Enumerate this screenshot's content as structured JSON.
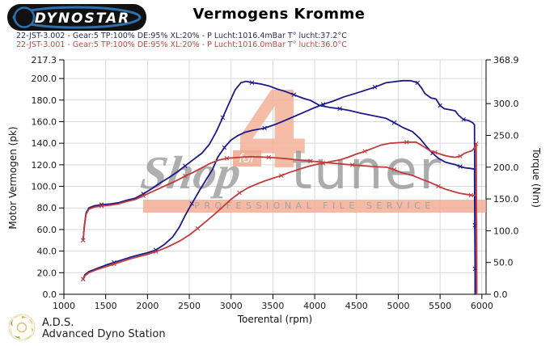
{
  "header": {
    "logo_text": "DYNOSTAR",
    "title": "Vermogens Kromme"
  },
  "legend": [
    {
      "label": "22-JST-3.002 - Gear:5 TP:100% DE:95% XL:20%   - P Lucht:1016.4mBar T° lucht:37.2°C",
      "color": "#2b2b55"
    },
    {
      "label": "22-JST-3.001 - Gear:5 TP:100% DE:95% XL:20%   - P Lucht:1016.0mBar T° lucht:36.0°C",
      "color": "#cc4444"
    }
  ],
  "watermark": {
    "word_shop": "Shop",
    "word_for": "for",
    "word_4": "4",
    "word_tuner": "tuner",
    "band_text": "PROFESSIONAL FILE SERVICE",
    "accent_color": "#f3ac92",
    "gray_color": "#9c9c9c"
  },
  "footer": {
    "abbr": "A.D.S.",
    "name": "Advanced Dyno Station"
  },
  "chart_data": {
    "type": "line",
    "title": "Vermogens Kromme",
    "xlabel": "Toerental (rpm)",
    "ylabel_left": "Motor Vermogen (pk)",
    "ylabel_right": "Torque (Nm)",
    "xlim": [
      1000,
      6050
    ],
    "ylim_left": [
      0,
      217.3
    ],
    "ylim_right": [
      0,
      368.9
    ],
    "x_ticks": [
      1000,
      1500,
      2000,
      2500,
      3000,
      3500,
      4000,
      4500,
      5000,
      5500,
      6000
    ],
    "left_ticks": [
      0,
      20,
      40,
      60,
      80,
      100,
      120,
      140,
      160,
      180,
      200,
      217.3
    ],
    "right_ticks": [
      0,
      50,
      100,
      150,
      200,
      250,
      300,
      368.9
    ],
    "grid_color": "#d9d9d9",
    "axis_color": "#000000",
    "series": [
      {
        "name": "22-JST-3.002 torque",
        "axis": "right",
        "color": "#1a1a8c",
        "points": [
          [
            1230,
            85
          ],
          [
            1245,
            108
          ],
          [
            1265,
            128
          ],
          [
            1300,
            136
          ],
          [
            1360,
            139
          ],
          [
            1450,
            141
          ],
          [
            1550,
            142
          ],
          [
            1650,
            144
          ],
          [
            1750,
            148
          ],
          [
            1850,
            151
          ],
          [
            1950,
            158
          ],
          [
            2050,
            166
          ],
          [
            2150,
            175
          ],
          [
            2250,
            183
          ],
          [
            2350,
            192
          ],
          [
            2450,
            202
          ],
          [
            2550,
            212
          ],
          [
            2650,
            222
          ],
          [
            2740,
            236
          ],
          [
            2820,
            255
          ],
          [
            2900,
            278
          ],
          [
            2980,
            302
          ],
          [
            3050,
            322
          ],
          [
            3120,
            333
          ],
          [
            3180,
            335
          ],
          [
            3250,
            333
          ],
          [
            3350,
            331
          ],
          [
            3450,
            328
          ],
          [
            3550,
            323
          ],
          [
            3650,
            319
          ],
          [
            3750,
            314
          ],
          [
            3850,
            309
          ],
          [
            3950,
            305
          ],
          [
            4060,
            297
          ],
          [
            4180,
            294
          ],
          [
            4300,
            292
          ],
          [
            4420,
            289
          ],
          [
            4550,
            285
          ],
          [
            4700,
            281
          ],
          [
            4850,
            277
          ],
          [
            4950,
            270
          ],
          [
            5060,
            262
          ],
          [
            5170,
            256
          ],
          [
            5260,
            245
          ],
          [
            5340,
            232
          ],
          [
            5410,
            222
          ],
          [
            5480,
            214
          ],
          [
            5560,
            208
          ],
          [
            5620,
            206
          ],
          [
            5680,
            204
          ],
          [
            5740,
            201
          ],
          [
            5800,
            199
          ],
          [
            5860,
            198
          ],
          [
            5912,
            197
          ],
          [
            5916,
            120
          ],
          [
            5918,
            40
          ],
          [
            5919,
            0
          ]
        ]
      },
      {
        "name": "22-JST-3.002 power",
        "axis": "left",
        "color": "#1a1a8c",
        "points": [
          [
            1230,
            14
          ],
          [
            1250,
            18
          ],
          [
            1300,
            21
          ],
          [
            1400,
            24
          ],
          [
            1500,
            27
          ],
          [
            1600,
            29.5
          ],
          [
            1700,
            32
          ],
          [
            1800,
            34.5
          ],
          [
            1900,
            36.5
          ],
          [
            2000,
            38.5
          ],
          [
            2100,
            41
          ],
          [
            2200,
            46
          ],
          [
            2300,
            53
          ],
          [
            2380,
            62
          ],
          [
            2450,
            73
          ],
          [
            2530,
            84
          ],
          [
            2620,
            96
          ],
          [
            2700,
            106
          ],
          [
            2780,
            116
          ],
          [
            2840,
            127
          ],
          [
            2920,
            136
          ],
          [
            3000,
            143
          ],
          [
            3080,
            147
          ],
          [
            3160,
            150
          ],
          [
            3260,
            152
          ],
          [
            3400,
            154
          ],
          [
            3550,
            158
          ],
          [
            3700,
            163
          ],
          [
            3850,
            168
          ],
          [
            4000,
            173
          ],
          [
            4100,
            176
          ],
          [
            4220,
            179
          ],
          [
            4350,
            183
          ],
          [
            4480,
            186
          ],
          [
            4600,
            189
          ],
          [
            4720,
            192
          ],
          [
            4850,
            196
          ],
          [
            4950,
            197
          ],
          [
            5050,
            198
          ],
          [
            5150,
            198
          ],
          [
            5230,
            196
          ],
          [
            5280,
            191
          ],
          [
            5320,
            186
          ],
          [
            5390,
            182
          ],
          [
            5450,
            181
          ],
          [
            5500,
            175
          ],
          [
            5550,
            172
          ],
          [
            5620,
            171
          ],
          [
            5680,
            170
          ],
          [
            5720,
            166
          ],
          [
            5780,
            162
          ],
          [
            5840,
            161
          ],
          [
            5890,
            159
          ],
          [
            5912,
            157
          ],
          [
            5915,
            100
          ],
          [
            5917,
            64
          ],
          [
            5919,
            0
          ]
        ]
      },
      {
        "name": "22-JST-3.001 torque",
        "axis": "right",
        "color": "#c33b3b",
        "points": [
          [
            1230,
            85
          ],
          [
            1245,
            106
          ],
          [
            1265,
            126
          ],
          [
            1300,
            134
          ],
          [
            1360,
            137
          ],
          [
            1450,
            139
          ],
          [
            1550,
            140
          ],
          [
            1650,
            142
          ],
          [
            1750,
            146
          ],
          [
            1850,
            149
          ],
          [
            1950,
            155
          ],
          [
            2050,
            161
          ],
          [
            2150,
            167
          ],
          [
            2250,
            173
          ],
          [
            2350,
            179
          ],
          [
            2450,
            186
          ],
          [
            2550,
            192
          ],
          [
            2650,
            199
          ],
          [
            2750,
            206
          ],
          [
            2850,
            211
          ],
          [
            2950,
            214
          ],
          [
            3050,
            215
          ],
          [
            3150,
            216
          ],
          [
            3250,
            216.5
          ],
          [
            3350,
            216
          ],
          [
            3450,
            215.5
          ],
          [
            3550,
            214.5
          ],
          [
            3650,
            213.5
          ],
          [
            3750,
            212
          ],
          [
            3850,
            210.5
          ],
          [
            3950,
            209.5
          ],
          [
            4050,
            208.5
          ],
          [
            4150,
            207
          ],
          [
            4250,
            206
          ],
          [
            4350,
            204.5
          ],
          [
            4450,
            203.5
          ],
          [
            4550,
            202.5
          ],
          [
            4650,
            201.5
          ],
          [
            4750,
            200.5
          ],
          [
            4860,
            200
          ],
          [
            4950,
            196
          ],
          [
            5050,
            191
          ],
          [
            5170,
            187
          ],
          [
            5280,
            181
          ],
          [
            5380,
            176
          ],
          [
            5480,
            170
          ],
          [
            5570,
            165
          ],
          [
            5650,
            162
          ],
          [
            5730,
            159
          ],
          [
            5800,
            157.5
          ],
          [
            5870,
            156
          ],
          [
            5920,
            155.5
          ],
          [
            5934,
            155
          ],
          [
            5937,
            90
          ],
          [
            5939,
            0
          ]
        ]
      },
      {
        "name": "22-JST-3.001 power",
        "axis": "left",
        "color": "#c33b3b",
        "points": [
          [
            1230,
            14
          ],
          [
            1250,
            17
          ],
          [
            1300,
            20
          ],
          [
            1400,
            23
          ],
          [
            1500,
            25.5
          ],
          [
            1600,
            28
          ],
          [
            1700,
            30.5
          ],
          [
            1800,
            33
          ],
          [
            1900,
            35
          ],
          [
            2000,
            37
          ],
          [
            2100,
            39.5
          ],
          [
            2200,
            42.5
          ],
          [
            2300,
            46
          ],
          [
            2400,
            50
          ],
          [
            2500,
            55
          ],
          [
            2600,
            61
          ],
          [
            2700,
            67.5
          ],
          [
            2800,
            74
          ],
          [
            2900,
            81
          ],
          [
            3000,
            88
          ],
          [
            3100,
            94
          ],
          [
            3200,
            98.5
          ],
          [
            3300,
            102
          ],
          [
            3400,
            105
          ],
          [
            3500,
            107.5
          ],
          [
            3600,
            110
          ],
          [
            3700,
            113
          ],
          [
            3800,
            115.5
          ],
          [
            3900,
            118
          ],
          [
            4000,
            120
          ],
          [
            4100,
            121.5
          ],
          [
            4200,
            123
          ],
          [
            4300,
            124.5
          ],
          [
            4400,
            127
          ],
          [
            4500,
            130
          ],
          [
            4600,
            132.5
          ],
          [
            4700,
            135.5
          ],
          [
            4800,
            138.5
          ],
          [
            4900,
            140
          ],
          [
            5000,
            140.5
          ],
          [
            5100,
            141
          ],
          [
            5210,
            141
          ],
          [
            5260,
            139
          ],
          [
            5320,
            136
          ],
          [
            5380,
            133
          ],
          [
            5440,
            131.5
          ],
          [
            5500,
            130
          ],
          [
            5560,
            128.5
          ],
          [
            5620,
            127.5
          ],
          [
            5680,
            127
          ],
          [
            5740,
            128
          ],
          [
            5790,
            130.5
          ],
          [
            5840,
            132
          ],
          [
            5880,
            133
          ],
          [
            5915,
            136
          ],
          [
            5932,
            139.5
          ],
          [
            5936,
            72
          ],
          [
            5938,
            0
          ]
        ]
      }
    ]
  }
}
